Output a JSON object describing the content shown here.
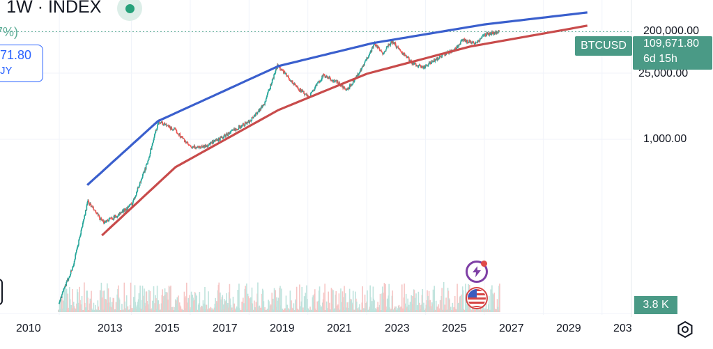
{
  "header": {
    "title": "· 1W · INDEX",
    "change_text": "7%)",
    "price_box": {
      "price": "71.80",
      "sub": "JY"
    }
  },
  "price_axis": {
    "ticks": [
      "200,000.00",
      "25,000.00",
      "1,000.00"
    ],
    "ticker_tag": "BTCUSD",
    "last_price": "109,671.80",
    "countdown": "6d 15h",
    "volume_tag": "3.8 K"
  },
  "time_axis": {
    "labels": [
      "2010",
      "2013",
      "2015",
      "2017",
      "2019",
      "2021",
      "2023",
      "2025",
      "2027",
      "2029",
      "203"
    ]
  },
  "colors": {
    "upper_band": "#3a5fcd",
    "lower_band": "#c84b4b",
    "up_candle": "#26a69a",
    "down_candle": "#ef5350",
    "tag_bg": "#4a9a86",
    "price_line": "#5aab94"
  },
  "icons": {
    "live": "live-indicator-icon",
    "alerts": "lightning-bolt-icon",
    "events": "us-flag-icon",
    "settings": "settings-gear-icon"
  },
  "chart_data": {
    "type": "line",
    "title": "",
    "series": [
      {
        "x": [
          2010.5,
          2011.0,
          2011.5,
          2012.0,
          2012.5,
          2013.0,
          2013.5,
          2013.9,
          2014.5,
          2015.0,
          2015.5,
          2016.0,
          2016.5,
          2017.0,
          2017.5,
          2017.95,
          2018.5,
          2019.0,
          2019.5,
          2020.0,
          2020.3,
          2020.8,
          2021.25,
          2021.5,
          2021.85,
          2022.5,
          2022.9,
          2023.5,
          2024.0,
          2024.25,
          2024.7,
          2025.0,
          2025.5
        ],
        "values": [
          0.07,
          0.5,
          15,
          5,
          7,
          13,
          100,
          1000,
          600,
          250,
          270,
          400,
          650,
          1000,
          2500,
          19000,
          7000,
          3500,
          11000,
          7500,
          5000,
          15000,
          60000,
          35000,
          65000,
          22000,
          16500,
          30000,
          45000,
          70000,
          60000,
          95000,
          109671.8
        ]
      }
    ],
    "bands": [
      {
        "x": [
          2011.5,
          2013.9,
          2018.0,
          2021.2,
          2025.0,
          2028.5
        ],
        "values": [
          35,
          1000,
          18000,
          60000,
          160000,
          300000
        ]
      },
      {
        "x": [
          2012.0,
          2014.5,
          2018.0,
          2021.0,
          2024.5,
          2028.5
        ],
        "values": [
          2.5,
          90,
          1800,
          12000,
          50000,
          150000
        ]
      }
    ],
    "y_scale": "log",
    "ylim": [
      0.05,
      400000
    ],
    "xlim": [
      2009.6,
      2030.0
    ],
    "grid": true
  }
}
